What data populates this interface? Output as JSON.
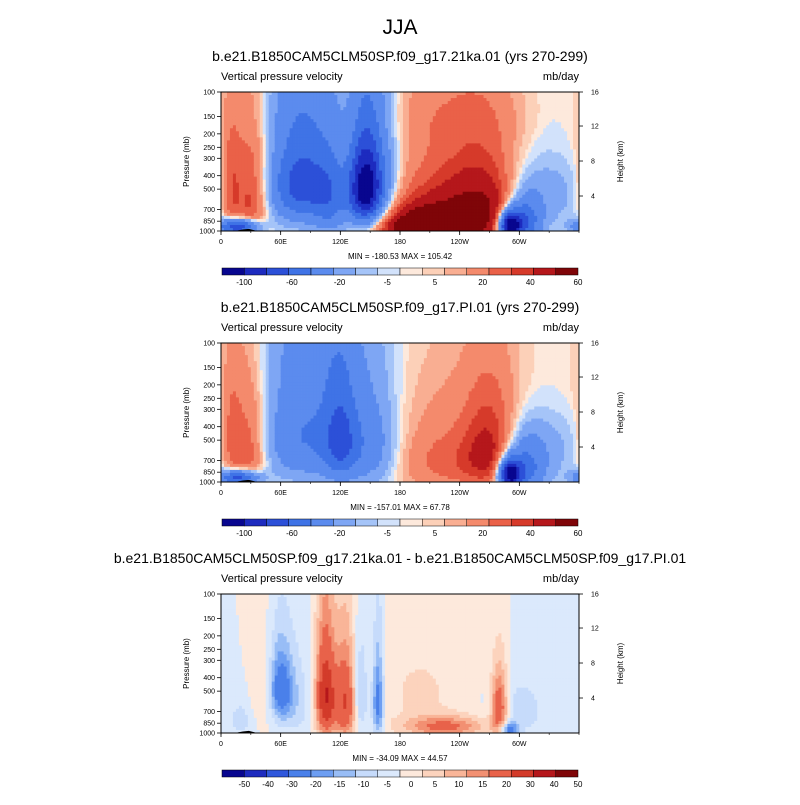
{
  "main_title": "JJA",
  "chart_data": [
    {
      "type": "heatmap",
      "title": "b.e21.B1850CAM5CLM50SP.f09_g17.21ka.01 (yrs 270-299)",
      "left_string": "Vertical pressure velocity",
      "units": "mb/day",
      "ylabel": "Pressure (mb)",
      "ylabel_right": "Height (km)",
      "yticks": [
        "100",
        "150",
        "200",
        "250",
        "300",
        "400",
        "500",
        "700",
        "850",
        "1000"
      ],
      "yticks_right": [
        "16",
        "12",
        "8",
        "4"
      ],
      "xticks": [
        "0",
        "60E",
        "120E",
        "180",
        "120W",
        "60W"
      ],
      "stats": "MIN = -180.53   MAX = 105.42",
      "colorbar_labels": [
        "-100",
        "-60",
        "-20",
        "-5",
        "5",
        "20",
        "40",
        "60"
      ],
      "colorbar_levels": [
        -100,
        -80,
        -60,
        -40,
        -20,
        -10,
        -5,
        -1,
        1,
        5,
        10,
        20,
        30,
        40,
        60,
        80
      ],
      "min": -180.53,
      "max": 105.42,
      "features": [
        {
          "lon": 30,
          "p": 600,
          "sx": 12,
          "sy": 350,
          "v": 35
        },
        {
          "lon": 10,
          "p": 500,
          "sx": 7,
          "sy": 300,
          "v": 25
        },
        {
          "lon": 18,
          "p": 930,
          "sx": 14,
          "sy": 80,
          "v": -90
        },
        {
          "lon": 80,
          "p": 450,
          "sx": 22,
          "sy": 260,
          "v": -70
        },
        {
          "lon": 110,
          "p": 600,
          "sx": 12,
          "sy": 300,
          "v": -35
        },
        {
          "lon": 145,
          "p": 500,
          "sx": 12,
          "sy": 250,
          "v": -110
        },
        {
          "lon": 160,
          "p": 400,
          "sx": 15,
          "sy": 320,
          "v": -25
        },
        {
          "lon": 205,
          "p": 950,
          "sx": 30,
          "sy": 180,
          "v": 90
        },
        {
          "lon": 228,
          "p": 700,
          "sx": 38,
          "sy": 330,
          "v": 45
        },
        {
          "lon": 265,
          "p": 700,
          "sx": 22,
          "sy": 300,
          "v": 40
        },
        {
          "lon": 290,
          "p": 900,
          "sx": 8,
          "sy": 140,
          "v": -120
        },
        {
          "lon": 305,
          "p": 850,
          "sx": 12,
          "sy": 220,
          "v": -60
        },
        {
          "lon": 328,
          "p": 500,
          "sx": 25,
          "sy": 300,
          "v": -15
        },
        {
          "lon": 300,
          "p": 200,
          "sx": 80,
          "sy": 140,
          "v": 7
        },
        {
          "lon": 80,
          "p": 130,
          "sx": 40,
          "sy": 60,
          "v": -6
        },
        {
          "lon": 220,
          "p": 140,
          "sx": 60,
          "sy": 60,
          "v": 6
        }
      ]
    },
    {
      "type": "heatmap",
      "title": "b.e21.B1850CAM5CLM50SP.f09_g17.PI.01 (yrs 270-299)",
      "left_string": "Vertical pressure velocity",
      "units": "mb/day",
      "ylabel": "Pressure (mb)",
      "ylabel_right": "Height (km)",
      "yticks": [
        "100",
        "150",
        "200",
        "250",
        "300",
        "400",
        "500",
        "700",
        "850",
        "1000"
      ],
      "yticks_right": [
        "16",
        "12",
        "8",
        "4"
      ],
      "xticks": [
        "0",
        "60E",
        "120E",
        "180",
        "120W",
        "60W"
      ],
      "stats": "MIN = -157.01   MAX =  67.78",
      "colorbar_labels": [
        "-100",
        "-60",
        "-20",
        "-5",
        "5",
        "20",
        "40",
        "60"
      ],
      "colorbar_levels": [
        -100,
        -80,
        -60,
        -40,
        -20,
        -10,
        -5,
        -1,
        1,
        5,
        10,
        20,
        30,
        40,
        60,
        80
      ],
      "min": -157.01,
      "max": 67.78,
      "features": [
        {
          "lon": 28,
          "p": 600,
          "sx": 12,
          "sy": 350,
          "v": 30
        },
        {
          "lon": 10,
          "p": 500,
          "sx": 7,
          "sy": 300,
          "v": 20
        },
        {
          "lon": 18,
          "p": 930,
          "sx": 14,
          "sy": 80,
          "v": -80
        },
        {
          "lon": 85,
          "p": 450,
          "sx": 30,
          "sy": 320,
          "v": -40
        },
        {
          "lon": 120,
          "p": 500,
          "sx": 12,
          "sy": 300,
          "v": -45
        },
        {
          "lon": 150,
          "p": 550,
          "sx": 20,
          "sy": 330,
          "v": -30
        },
        {
          "lon": 230,
          "p": 700,
          "sx": 40,
          "sy": 320,
          "v": 25
        },
        {
          "lon": 270,
          "p": 600,
          "sx": 18,
          "sy": 300,
          "v": 35
        },
        {
          "lon": 290,
          "p": 880,
          "sx": 8,
          "sy": 150,
          "v": -110
        },
        {
          "lon": 305,
          "p": 800,
          "sx": 14,
          "sy": 250,
          "v": -50
        },
        {
          "lon": 330,
          "p": 550,
          "sx": 22,
          "sy": 300,
          "v": -12
        },
        {
          "lon": 310,
          "p": 200,
          "sx": 70,
          "sy": 140,
          "v": 6
        },
        {
          "lon": 90,
          "p": 130,
          "sx": 40,
          "sy": 60,
          "v": -5
        }
      ]
    },
    {
      "type": "heatmap",
      "title": "b.e21.B1850CAM5CLM50SP.f09_g17.21ka.01 - b.e21.B1850CAM5CLM50SP.f09_g17.PI.01",
      "left_string": "Vertical pressure velocity",
      "units": "mb/day",
      "ylabel": "Pressure (mb)",
      "ylabel_right": "Height (km)",
      "yticks": [
        "100",
        "150",
        "200",
        "250",
        "300",
        "400",
        "500",
        "700",
        "850",
        "1000"
      ],
      "yticks_right": [
        "16",
        "12",
        "8",
        "4"
      ],
      "xticks": [
        "0",
        "60E",
        "120E",
        "180",
        "120W",
        "60W"
      ],
      "stats": "MIN = -34.09   MAX =  44.57",
      "colorbar_labels": [
        "-50",
        "-40",
        "-30",
        "-20",
        "-15",
        "-10",
        "-5",
        "0",
        "5",
        "10",
        "15",
        "20",
        "30",
        "40",
        "50"
      ],
      "colorbar_levels": [
        -50,
        -40,
        -30,
        -20,
        -15,
        -10,
        -5,
        0,
        5,
        10,
        15,
        20,
        30,
        40,
        50
      ],
      "min": -34.09,
      "max": 44.57,
      "features": [
        {
          "lon": 60,
          "p": 480,
          "sx": 8,
          "sy": 200,
          "v": -25
        },
        {
          "lon": 75,
          "p": 600,
          "sx": 12,
          "sy": 300,
          "v": -8
        },
        {
          "lon": 105,
          "p": 550,
          "sx": 7,
          "sy": 320,
          "v": 40
        },
        {
          "lon": 125,
          "p": 600,
          "sx": 8,
          "sy": 320,
          "v": 30
        },
        {
          "lon": 140,
          "p": 550,
          "sx": 5,
          "sy": 280,
          "v": -15
        },
        {
          "lon": 158,
          "p": 600,
          "sx": 4,
          "sy": 300,
          "v": -25
        },
        {
          "lon": 225,
          "p": 900,
          "sx": 30,
          "sy": 110,
          "v": 22
        },
        {
          "lon": 200,
          "p": 500,
          "sx": 30,
          "sy": 250,
          "v": 6
        },
        {
          "lon": 280,
          "p": 650,
          "sx": 6,
          "sy": 250,
          "v": 30
        },
        {
          "lon": 290,
          "p": 950,
          "sx": 6,
          "sy": 80,
          "v": -25
        },
        {
          "lon": 300,
          "p": 700,
          "sx": 20,
          "sy": 250,
          "v": -8
        },
        {
          "lon": 20,
          "p": 800,
          "sx": 10,
          "sy": 200,
          "v": -7
        },
        {
          "lon": 40,
          "p": 500,
          "sx": 8,
          "sy": 250,
          "v": 6
        }
      ]
    }
  ],
  "colors": {
    "ramp": [
      "#08068f",
      "#1d2bbf",
      "#2c50d8",
      "#3f73e6",
      "#5b8bee",
      "#7ea6f4",
      "#a5c4f8",
      "#d2e2fb",
      "#fde9dc",
      "#fcd0b8",
      "#f9ae92",
      "#f48a6c",
      "#ea6148",
      "#d63a2a",
      "#b5171b",
      "#7f0508"
    ],
    "diff_ramp": [
      "#08068f",
      "#1d2bbf",
      "#2f57dc",
      "#4a80ea",
      "#6d9ef2",
      "#98bdf6",
      "#c6dbfb",
      "#dbe9fc",
      "#fde9dc",
      "#fcd3bd",
      "#f9b598",
      "#f29072",
      "#e8624a",
      "#d33b2a",
      "#b5171b",
      "#7f0508"
    ]
  }
}
